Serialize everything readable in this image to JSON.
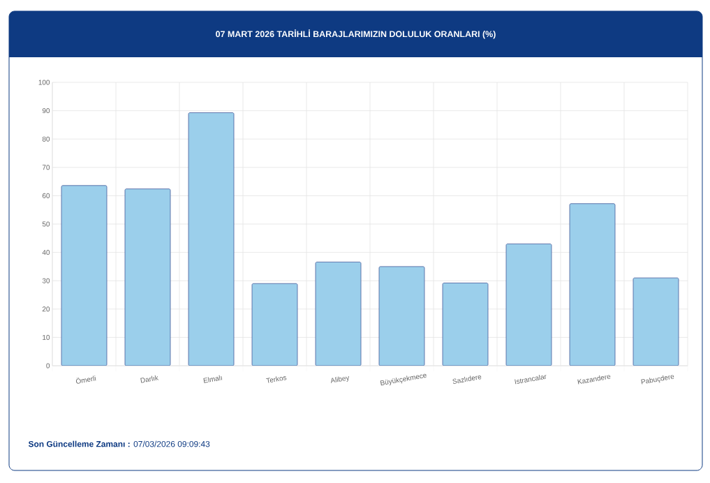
{
  "chart_data": {
    "type": "bar",
    "title": "07 MART 2026 TARİHLİ BARAJLARIMIZIN DOLULUK ORANLARI (%)",
    "categories": [
      "Ömerli",
      "Darlık",
      "Elmalı",
      "Terkos",
      "Alibey",
      "Büyükçekmece",
      "Sazlıdere",
      "Istrancalar",
      "Kazandere",
      "Pabuçdere"
    ],
    "values": [
      63.6,
      62.4,
      89.3,
      29.0,
      36.6,
      35.0,
      29.2,
      43.0,
      57.2,
      31.0
    ],
    "color": "#9bcfeb",
    "ylim": [
      0,
      100
    ],
    "yticks": [
      0,
      10,
      20,
      30,
      40,
      50,
      60,
      70,
      80,
      90,
      100
    ],
    "grid": true,
    "annotations": [
      "**Son Güncelleme Zamanı :** 07/03/2026 09:09:43"
    ]
  }
}
